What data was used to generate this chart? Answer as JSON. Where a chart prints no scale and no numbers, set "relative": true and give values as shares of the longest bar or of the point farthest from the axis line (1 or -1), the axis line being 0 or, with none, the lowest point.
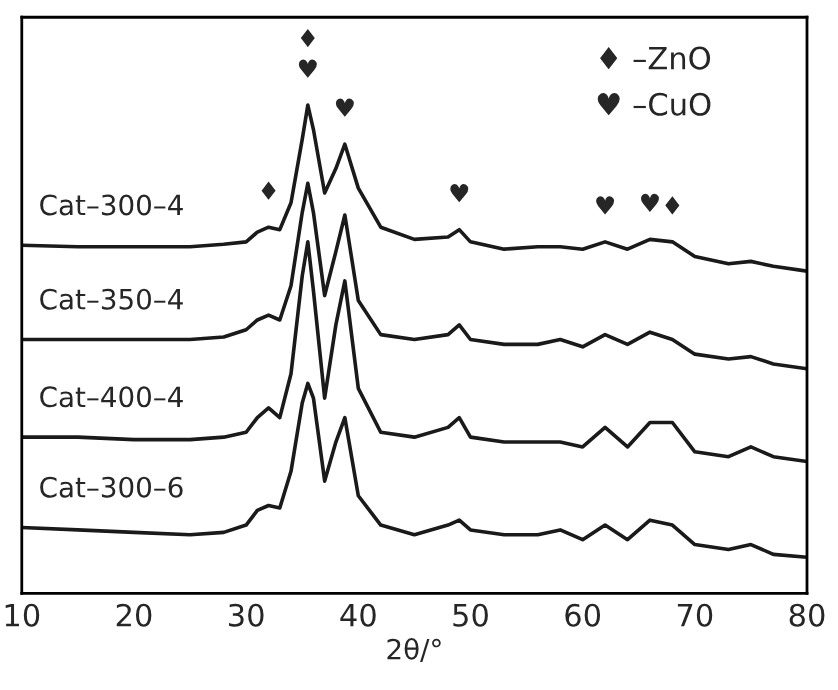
{
  "chart_data": {
    "type": "line",
    "xlabel": "2θ/°",
    "relative": true,
    "tick_labels": "x",
    "grid": false,
    "legend": false,
    "marker": "none",
    "line_style": "solid",
    "xlim": [
      10,
      80
    ],
    "xticks": [
      10,
      20,
      30,
      40,
      50,
      60,
      70,
      80
    ],
    "x": [
      10,
      15,
      20,
      25,
      28,
      30,
      31,
      32,
      33,
      34,
      35,
      35.5,
      36,
      37,
      38,
      38.8,
      40,
      42,
      45,
      48,
      49,
      50,
      53,
      56,
      58,
      60,
      62,
      64,
      66,
      68,
      70,
      73,
      75,
      77,
      80
    ],
    "series": [
      {
        "name": "Cat–300–4",
        "color": "#1a1a1a",
        "values": [
          0.713,
          0.71,
          0.71,
          0.71,
          0.715,
          0.72,
          0.74,
          0.75,
          0.745,
          0.8,
          0.93,
          1.0,
          0.95,
          0.82,
          0.87,
          0.92,
          0.83,
          0.75,
          0.725,
          0.73,
          0.745,
          0.72,
          0.705,
          0.71,
          0.71,
          0.705,
          0.72,
          0.705,
          0.725,
          0.72,
          0.69,
          0.675,
          0.68,
          0.67,
          0.66
        ]
      },
      {
        "name": "Cat–350–4",
        "color": "#1a1a1a",
        "values": [
          0.52,
          0.52,
          0.52,
          0.52,
          0.525,
          0.54,
          0.56,
          0.57,
          0.56,
          0.63,
          0.78,
          0.84,
          0.78,
          0.61,
          0.7,
          0.775,
          0.6,
          0.53,
          0.52,
          0.53,
          0.55,
          0.52,
          0.51,
          0.51,
          0.52,
          0.505,
          0.53,
          0.51,
          0.535,
          0.52,
          0.49,
          0.48,
          0.485,
          0.47,
          0.46
        ]
      },
      {
        "name": "Cat–400–4",
        "color": "#1a1a1a",
        "values": [
          0.32,
          0.32,
          0.315,
          0.315,
          0.32,
          0.33,
          0.36,
          0.38,
          0.36,
          0.45,
          0.65,
          0.72,
          0.62,
          0.4,
          0.55,
          0.64,
          0.42,
          0.33,
          0.32,
          0.34,
          0.36,
          0.32,
          0.31,
          0.31,
          0.31,
          0.3,
          0.34,
          0.3,
          0.35,
          0.35,
          0.29,
          0.28,
          0.3,
          0.28,
          0.27
        ]
      },
      {
        "name": "Cat–300–6",
        "color": "#1a1a1a",
        "values": [
          0.135,
          0.13,
          0.125,
          0.12,
          0.125,
          0.14,
          0.17,
          0.18,
          0.175,
          0.25,
          0.39,
          0.43,
          0.4,
          0.23,
          0.31,
          0.36,
          0.2,
          0.14,
          0.12,
          0.14,
          0.15,
          0.13,
          0.12,
          0.12,
          0.13,
          0.11,
          0.14,
          0.11,
          0.15,
          0.14,
          0.1,
          0.09,
          0.1,
          0.08,
          0.074
        ]
      }
    ],
    "annotations": [
      {
        "text": "♦",
        "x": 32,
        "y": 0.75
      },
      {
        "text": "♥",
        "x": 35.5,
        "y": 1.0
      },
      {
        "text": "♦",
        "x": 35.5,
        "y": 1.0
      },
      {
        "text": "♥",
        "x": 38.8,
        "y": 0.92
      },
      {
        "text": "♥",
        "x": 49,
        "y": 0.745
      },
      {
        "text": "♥",
        "x": 62,
        "y": 0.72
      },
      {
        "text": "♥",
        "x": 66,
        "y": 0.725
      },
      {
        "text": "♦",
        "x": 68,
        "y": 0.72
      },
      "♦ –ZnO",
      "♥ –CuO"
    ]
  }
}
